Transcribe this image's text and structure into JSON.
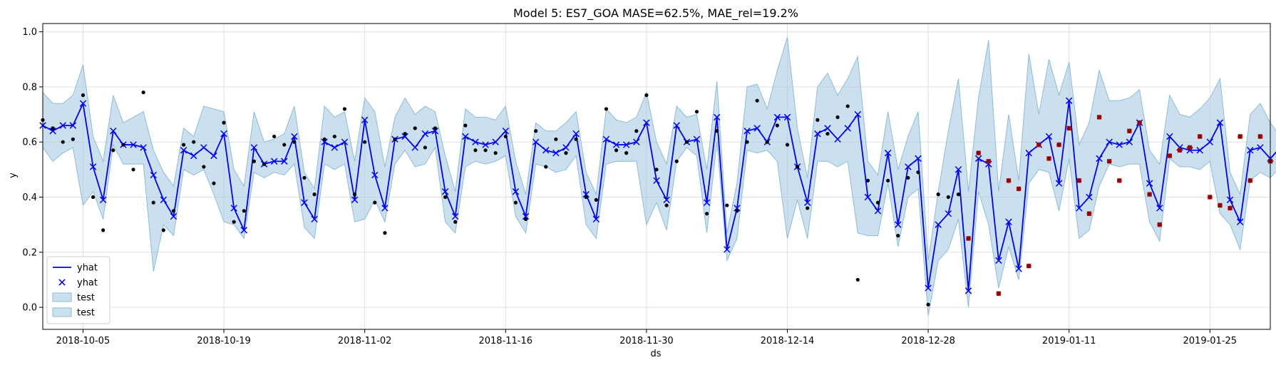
{
  "chart_data": {
    "type": "line",
    "title": "Model 5: ES7_GOA MASE=62.5%, MAE_rel=19.2%",
    "xlabel": "ds",
    "ylabel": "y",
    "x_start": "2018-10-01",
    "x_ticks": [
      "2018-10-05",
      "2018-10-19",
      "2018-11-02",
      "2018-11-16",
      "2018-11-30",
      "2018-12-14",
      "2018-12-28",
      "2019-01-11",
      "2019-01-25"
    ],
    "y_ticks": [
      "0.0",
      "0.2",
      "0.4",
      "0.6",
      "0.8",
      "1.0"
    ],
    "xlim": [
      "2018-10-01",
      "2019-01-31"
    ],
    "ylim": [
      -0.08,
      1.03
    ],
    "grid": true,
    "legend_position": "lower-left",
    "legend": [
      {
        "label": "yhat",
        "kind": "line"
      },
      {
        "label": "yhat",
        "kind": "marker"
      },
      {
        "label": "test",
        "kind": "band"
      },
      {
        "label": "test",
        "kind": "band"
      }
    ],
    "colors": {
      "yhat": "#0000ff",
      "band": "#a6cbe3",
      "band_edge": "#8dbcd8",
      "actual": "#000000",
      "test_actual": "#cc0000"
    },
    "yhat": [
      0.66,
      0.64,
      0.66,
      0.66,
      0.74,
      0.51,
      0.39,
      0.64,
      0.59,
      0.59,
      0.58,
      0.48,
      0.39,
      0.33,
      0.57,
      0.55,
      0.58,
      0.55,
      0.63,
      0.36,
      0.28,
      0.58,
      0.52,
      0.53,
      0.53,
      0.62,
      0.38,
      0.32,
      0.6,
      0.58,
      0.6,
      0.39,
      0.68,
      0.48,
      0.36,
      0.61,
      0.62,
      0.58,
      0.63,
      0.64,
      0.42,
      0.33,
      0.62,
      0.6,
      0.59,
      0.6,
      0.64,
      0.42,
      0.33,
      0.6,
      0.57,
      0.56,
      0.58,
      0.63,
      0.41,
      0.32,
      0.61,
      0.59,
      0.59,
      0.6,
      0.67,
      0.46,
      0.39,
      0.66,
      0.6,
      0.61,
      0.38,
      0.69,
      0.21,
      0.36,
      0.64,
      0.65,
      0.6,
      0.69,
      0.69,
      0.51,
      0.38,
      0.63,
      0.65,
      0.61,
      0.65,
      0.7,
      0.4,
      0.35,
      0.56,
      0.3,
      0.51,
      0.54,
      0.07,
      0.3,
      0.34,
      0.5,
      0.06,
      0.54,
      0.52,
      0.17,
      0.31,
      0.14,
      0.56,
      0.59,
      0.62,
      0.45,
      0.75,
      0.36,
      0.4,
      0.54,
      0.6,
      0.59,
      0.6,
      0.67,
      0.45,
      0.36,
      0.62,
      0.58,
      0.57,
      0.57,
      0.6,
      0.67,
      0.39,
      0.31,
      0.57,
      0.58,
      0.54,
      0.58
    ],
    "band_upper": [
      0.78,
      0.74,
      0.74,
      0.77,
      0.88,
      0.62,
      0.53,
      0.77,
      0.67,
      0.69,
      0.71,
      0.57,
      0.49,
      0.44,
      0.65,
      0.62,
      0.73,
      0.72,
      0.71,
      0.5,
      0.44,
      0.71,
      0.6,
      0.61,
      0.63,
      0.73,
      0.49,
      0.43,
      0.73,
      0.69,
      0.71,
      0.53,
      0.76,
      0.71,
      0.51,
      0.69,
      0.76,
      0.7,
      0.73,
      0.71,
      0.55,
      0.42,
      0.72,
      0.69,
      0.69,
      0.68,
      0.73,
      0.53,
      0.41,
      0.67,
      0.64,
      0.64,
      0.67,
      0.71,
      0.49,
      0.41,
      0.72,
      0.68,
      0.67,
      0.69,
      0.78,
      0.6,
      0.52,
      0.73,
      0.69,
      0.7,
      0.5,
      0.82,
      0.27,
      0.45,
      0.8,
      0.81,
      0.72,
      0.86,
      0.98,
      0.65,
      0.47,
      0.8,
      0.85,
      0.77,
      0.83,
      0.91,
      0.53,
      0.48,
      0.71,
      0.5,
      0.62,
      0.71,
      0.17,
      0.42,
      0.64,
      0.83,
      0.42,
      0.76,
      0.97,
      0.42,
      0.7,
      0.46,
      0.92,
      0.7,
      0.9,
      0.77,
      0.89,
      0.59,
      0.67,
      0.86,
      0.75,
      0.75,
      0.76,
      0.79,
      0.57,
      0.52,
      0.77,
      0.7,
      0.69,
      0.72,
      0.76,
      0.83,
      0.49,
      0.41,
      0.7,
      0.74,
      0.67,
      0.62
    ],
    "band_lower": [
      0.58,
      0.53,
      0.56,
      0.58,
      0.37,
      0.42,
      0.32,
      0.59,
      0.52,
      0.52,
      0.52,
      0.13,
      0.3,
      0.26,
      0.5,
      0.48,
      0.5,
      0.41,
      0.31,
      0.3,
      0.25,
      0.49,
      0.47,
      0.49,
      0.48,
      0.52,
      0.29,
      0.25,
      0.52,
      0.5,
      0.52,
      0.31,
      0.32,
      0.39,
      0.31,
      0.52,
      0.57,
      0.51,
      0.52,
      0.58,
      0.31,
      0.27,
      0.51,
      0.53,
      0.52,
      0.53,
      0.55,
      0.33,
      0.27,
      0.52,
      0.51,
      0.49,
      0.5,
      0.55,
      0.3,
      0.25,
      0.52,
      0.53,
      0.53,
      0.53,
      0.3,
      0.38,
      0.28,
      0.53,
      0.58,
      0.55,
      0.27,
      0.6,
      0.17,
      0.25,
      0.57,
      0.56,
      0.57,
      0.53,
      0.25,
      0.39,
      0.25,
      0.53,
      0.53,
      0.51,
      0.53,
      0.27,
      0.26,
      0.26,
      0.45,
      0.22,
      0.4,
      0.43,
      -0.03,
      0.17,
      0.21,
      0.32,
      0.0,
      0.42,
      0.3,
      0.07,
      0.22,
      0.1,
      0.45,
      0.5,
      0.49,
      0.35,
      0.54,
      0.25,
      0.28,
      0.44,
      0.52,
      0.51,
      0.52,
      0.52,
      0.31,
      0.24,
      0.54,
      0.51,
      0.51,
      0.5,
      0.53,
      0.34,
      0.3,
      0.21,
      0.46,
      0.49,
      0.47,
      0.51
    ],
    "actual_train": [
      [
        0,
        0.68
      ],
      [
        1,
        0.65
      ],
      [
        2,
        0.6
      ],
      [
        3,
        0.61
      ],
      [
        4,
        0.77
      ],
      [
        5,
        0.4
      ],
      [
        6,
        0.28
      ],
      [
        7,
        0.57
      ],
      [
        8,
        0.59
      ],
      [
        9,
        0.5
      ],
      [
        10,
        0.78
      ],
      [
        11,
        0.38
      ],
      [
        12,
        0.28
      ],
      [
        13,
        0.35
      ],
      [
        14,
        0.59
      ],
      [
        15,
        0.6
      ],
      [
        16,
        0.51
      ],
      [
        17,
        0.45
      ],
      [
        18,
        0.67
      ],
      [
        19,
        0.31
      ],
      [
        20,
        0.35
      ],
      [
        21,
        0.53
      ],
      [
        22,
        0.52
      ],
      [
        23,
        0.62
      ],
      [
        24,
        0.59
      ],
      [
        25,
        0.6
      ],
      [
        26,
        0.47
      ],
      [
        27,
        0.41
      ],
      [
        28,
        0.61
      ],
      [
        29,
        0.62
      ],
      [
        30,
        0.72
      ],
      [
        31,
        0.41
      ],
      [
        32,
        0.6
      ],
      [
        33,
        0.38
      ],
      [
        34,
        0.27
      ],
      [
        35,
        0.61
      ],
      [
        36,
        0.63
      ],
      [
        37,
        0.65
      ],
      [
        38,
        0.58
      ],
      [
        39,
        0.65
      ],
      [
        40,
        0.4
      ],
      [
        41,
        0.31
      ],
      [
        42,
        0.66
      ],
      [
        43,
        0.57
      ],
      [
        44,
        0.57
      ],
      [
        45,
        0.56
      ],
      [
        46,
        0.62
      ],
      [
        47,
        0.38
      ],
      [
        48,
        0.32
      ],
      [
        49,
        0.64
      ],
      [
        50,
        0.51
      ],
      [
        51,
        0.61
      ],
      [
        52,
        0.56
      ],
      [
        53,
        0.61
      ],
      [
        54,
        0.4
      ],
      [
        55,
        0.39
      ],
      [
        56,
        0.72
      ],
      [
        57,
        0.57
      ],
      [
        58,
        0.56
      ],
      [
        59,
        0.64
      ],
      [
        60,
        0.77
      ],
      [
        61,
        0.5
      ],
      [
        62,
        0.37
      ],
      [
        63,
        0.53
      ],
      [
        64,
        0.6
      ],
      [
        65,
        0.71
      ],
      [
        66,
        0.34
      ],
      [
        67,
        0.64
      ],
      [
        68,
        0.37
      ],
      [
        69,
        0.35
      ],
      [
        70,
        0.6
      ],
      [
        71,
        0.75
      ],
      [
        72,
        0.6
      ],
      [
        73,
        0.66
      ],
      [
        74,
        0.59
      ],
      [
        75,
        0.51
      ],
      [
        76,
        0.36
      ],
      [
        77,
        0.68
      ],
      [
        78,
        0.63
      ],
      [
        79,
        0.69
      ],
      [
        80,
        0.73
      ],
      [
        81,
        0.1
      ],
      [
        82,
        0.46
      ],
      [
        83,
        0.38
      ],
      [
        84,
        0.46
      ],
      [
        85,
        0.26
      ],
      [
        86,
        0.47
      ],
      [
        87,
        0.49
      ],
      [
        88,
        0.01
      ],
      [
        89,
        0.41
      ],
      [
        90,
        0.4
      ],
      [
        91,
        0.41
      ]
    ],
    "actual_test": [
      [
        92,
        0.25
      ],
      [
        93,
        0.56
      ],
      [
        94,
        0.53
      ],
      [
        95,
        0.05
      ],
      [
        96,
        0.46
      ],
      [
        97,
        0.43
      ],
      [
        98,
        0.15
      ],
      [
        99,
        0.59
      ],
      [
        100,
        0.54
      ],
      [
        101,
        0.59
      ],
      [
        102,
        0.65
      ],
      [
        103,
        0.46
      ],
      [
        104,
        0.34
      ],
      [
        105,
        0.69
      ],
      [
        106,
        0.53
      ],
      [
        107,
        0.46
      ],
      [
        108,
        0.64
      ],
      [
        109,
        0.67
      ],
      [
        110,
        0.41
      ],
      [
        111,
        0.3
      ],
      [
        112,
        0.55
      ],
      [
        113,
        0.57
      ],
      [
        114,
        0.58
      ],
      [
        115,
        0.62
      ],
      [
        116,
        0.4
      ],
      [
        117,
        0.37
      ],
      [
        118,
        0.36
      ],
      [
        119,
        0.62
      ],
      [
        120,
        0.46
      ],
      [
        121,
        0.62
      ],
      [
        122,
        0.53
      ]
    ]
  }
}
